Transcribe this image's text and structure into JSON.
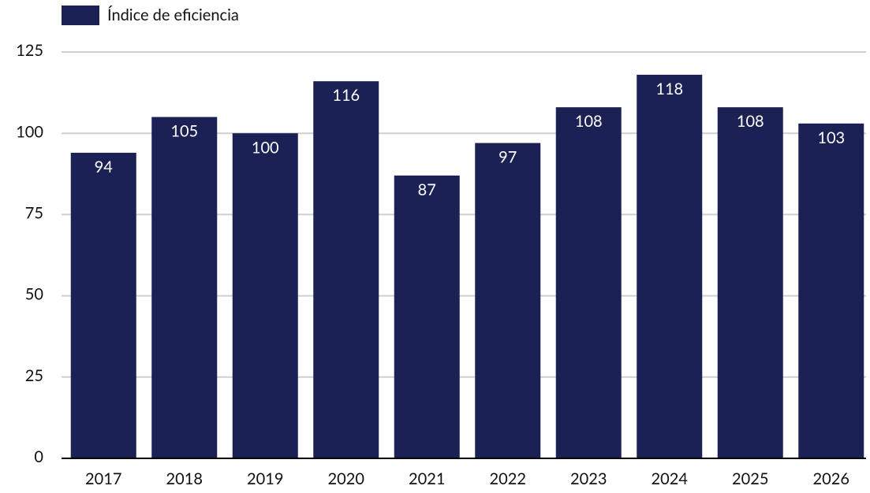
{
  "chart_data": {
    "type": "bar",
    "categories": [
      "2017",
      "2018",
      "2019",
      "2020",
      "2021",
      "2022",
      "2023",
      "2024",
      "2025",
      "2026"
    ],
    "series": [
      {
        "name": "Índice de eficiencia",
        "color": "#1b2154",
        "values": [
          94,
          105,
          100,
          116,
          87,
          97,
          108,
          118,
          108,
          103
        ]
      }
    ],
    "ylim": [
      0,
      125
    ],
    "yticks": [
      0,
      25,
      50,
      75,
      100,
      125
    ],
    "grid": true,
    "legend": "top-left"
  }
}
